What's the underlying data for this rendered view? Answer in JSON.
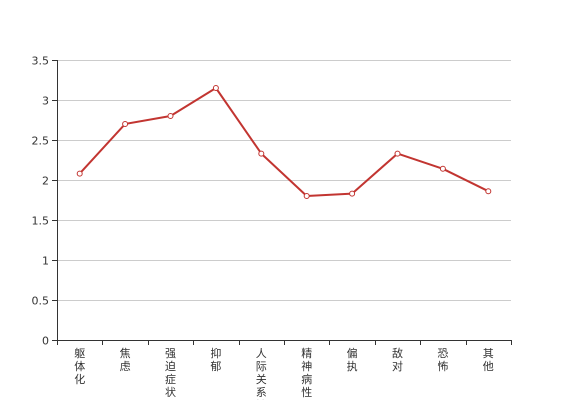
{
  "chart_data": {
    "type": "line",
    "categories": [
      "躯体化",
      "焦虑",
      "强迫症状",
      "抑郁",
      "人际关系敏",
      "精神病性",
      "偏执",
      "敌对",
      "恐怖",
      "其他"
    ],
    "series": [
      {
        "values": [
          2.08,
          2.7,
          2.8,
          3.15,
          2.33,
          1.8,
          1.83,
          2.33,
          2.14,
          1.86
        ]
      }
    ],
    "ylim": [
      0,
      3.5
    ],
    "yticks": [
      "0",
      "0.5",
      "1",
      "1.5",
      "2",
      "2.5",
      "3",
      "3.5"
    ],
    "grid": true,
    "colors": {
      "line": "#c23531",
      "grid": "#cccccc",
      "axis": "#333333",
      "marker_fill": "#ffffff"
    }
  }
}
